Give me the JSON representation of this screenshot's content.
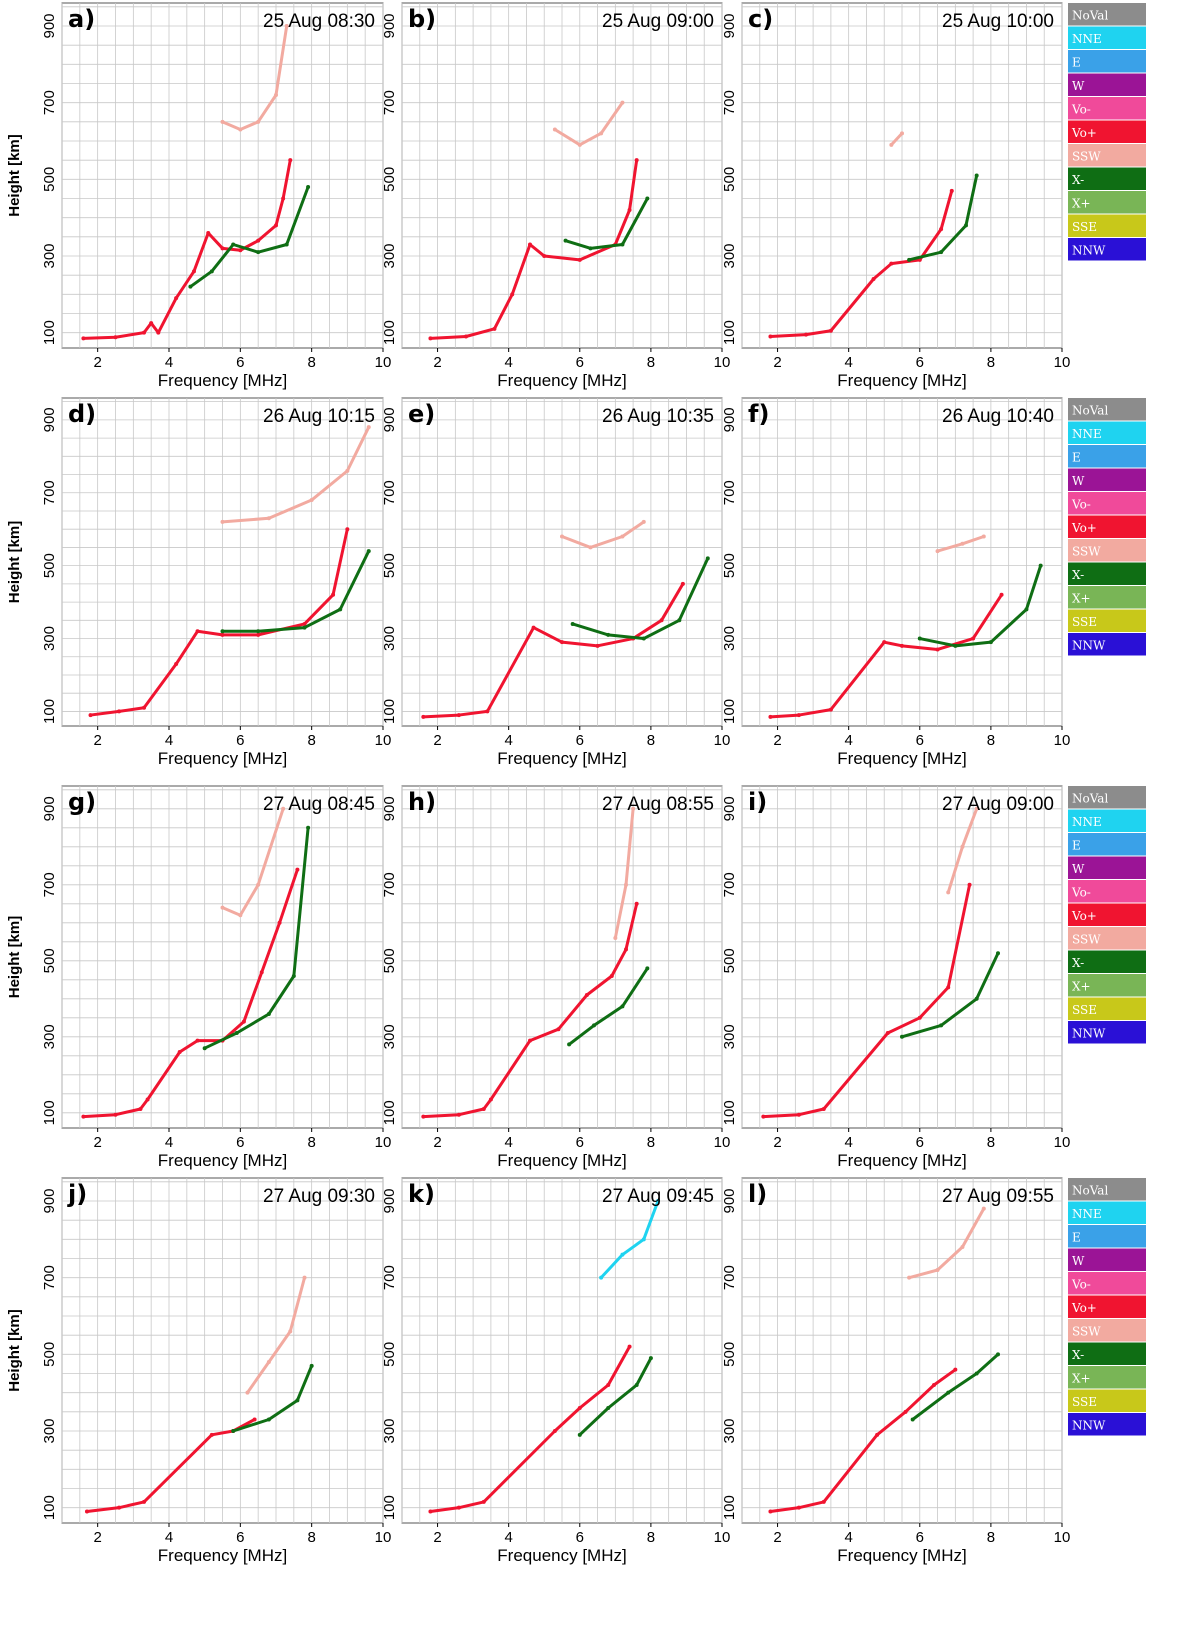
{
  "legend": {
    "entries": [
      {
        "label": "NoVal",
        "color": "#8c8c8c"
      },
      {
        "label": "NNE",
        "color": "#1fd3f0"
      },
      {
        "label": "E",
        "color": "#3aa1e8"
      },
      {
        "label": "W",
        "color": "#9b1496"
      },
      {
        "label": "Vo-",
        "color": "#f04a9a"
      },
      {
        "label": "Vo+",
        "color": "#f01430"
      },
      {
        "label": "SSW",
        "color": "#f2aaa0"
      },
      {
        "label": "X-",
        "color": "#0f6e14"
      },
      {
        "label": "X+",
        "color": "#79b556"
      },
      {
        "label": "SSE",
        "color": "#c8c81a"
      },
      {
        "label": "NNW",
        "color": "#2a10d6"
      }
    ]
  },
  "chart_data": [
    {
      "type": "scatter",
      "panel": "a)",
      "title": "25 Aug 08:30",
      "xlabel": "Frequency [MHz]",
      "ylabel": "Height [km]",
      "xlim": [
        1,
        10
      ],
      "ylim": [
        60,
        960
      ],
      "xticks": [
        "2",
        "4",
        "6",
        "8",
        "10"
      ],
      "yticks": [
        "100",
        "300",
        "500",
        "700",
        "900"
      ],
      "series": [
        {
          "name": "Vo+",
          "x": [
            1.6,
            2.5,
            3.3,
            3.5,
            3.7,
            4.2,
            4.7,
            5.1,
            5.5,
            6.0,
            6.5,
            7.0,
            7.2,
            7.4
          ],
          "y": [
            85,
            88,
            100,
            125,
            100,
            190,
            260,
            360,
            320,
            315,
            340,
            380,
            450,
            550
          ]
        },
        {
          "name": "X-",
          "x": [
            4.6,
            5.2,
            5.8,
            6.5,
            7.3,
            7.9
          ],
          "y": [
            220,
            260,
            330,
            310,
            330,
            480
          ]
        },
        {
          "name": "SSW",
          "x": [
            5.5,
            6.0,
            6.5,
            7.0,
            7.3
          ],
          "y": [
            650,
            630,
            650,
            720,
            900
          ]
        }
      ]
    },
    {
      "type": "scatter",
      "panel": "b)",
      "title": "25 Aug 09:00",
      "xlabel": "Frequency [MHz]",
      "ylabel": "Height [km]",
      "xlim": [
        1,
        10
      ],
      "ylim": [
        60,
        960
      ],
      "xticks": [
        "2",
        "4",
        "6",
        "8",
        "10"
      ],
      "yticks": [
        "100",
        "300",
        "500",
        "700",
        "900"
      ],
      "series": [
        {
          "name": "Vo+",
          "x": [
            1.8,
            2.8,
            3.6,
            4.1,
            4.6,
            5.0,
            6.0,
            7.0,
            7.4,
            7.6
          ],
          "y": [
            85,
            90,
            110,
            200,
            330,
            300,
            290,
            330,
            420,
            550
          ]
        },
        {
          "name": "X-",
          "x": [
            5.6,
            6.3,
            7.2,
            7.9
          ],
          "y": [
            340,
            320,
            330,
            450
          ]
        },
        {
          "name": "SSW",
          "x": [
            5.3,
            6.0,
            6.6,
            7.2
          ],
          "y": [
            630,
            590,
            620,
            700
          ]
        }
      ]
    },
    {
      "type": "scatter",
      "panel": "c)",
      "title": "25 Aug 10:00",
      "xlabel": "Frequency [MHz]",
      "ylabel": "Height [km]",
      "xlim": [
        1,
        10
      ],
      "ylim": [
        60,
        960
      ],
      "xticks": [
        "2",
        "4",
        "6",
        "8",
        "10"
      ],
      "yticks": [
        "100",
        "300",
        "500",
        "700",
        "900"
      ],
      "series": [
        {
          "name": "Vo+",
          "x": [
            1.8,
            2.8,
            3.5,
            4.7,
            5.2,
            6.0,
            6.6,
            6.9
          ],
          "y": [
            90,
            95,
            105,
            240,
            280,
            290,
            370,
            470
          ]
        },
        {
          "name": "X-",
          "x": [
            5.7,
            6.6,
            7.3,
            7.6
          ],
          "y": [
            290,
            310,
            380,
            510
          ]
        },
        {
          "name": "SSW",
          "x": [
            5.2,
            5.5
          ],
          "y": [
            590,
            620
          ]
        }
      ]
    },
    {
      "type": "scatter",
      "panel": "d)",
      "title": "26 Aug 10:15",
      "xlabel": "Frequency [MHz]",
      "ylabel": "Height [km]",
      "xlim": [
        1,
        10
      ],
      "ylim": [
        60,
        960
      ],
      "xticks": [
        "2",
        "4",
        "6",
        "8",
        "10"
      ],
      "yticks": [
        "100",
        "300",
        "500",
        "700",
        "900"
      ],
      "series": [
        {
          "name": "Vo+",
          "x": [
            1.8,
            2.6,
            3.3,
            4.2,
            4.8,
            5.5,
            6.5,
            7.8,
            8.6,
            9.0
          ],
          "y": [
            90,
            100,
            110,
            230,
            320,
            310,
            310,
            340,
            420,
            600
          ]
        },
        {
          "name": "X-",
          "x": [
            5.5,
            6.5,
            7.8,
            8.8,
            9.6
          ],
          "y": [
            320,
            320,
            330,
            380,
            540
          ]
        },
        {
          "name": "SSW",
          "x": [
            5.5,
            6.8,
            8.0,
            9.0,
            9.6
          ],
          "y": [
            620,
            630,
            680,
            760,
            880
          ]
        }
      ]
    },
    {
      "type": "scatter",
      "panel": "e)",
      "title": "26 Aug 10:35",
      "xlabel": "Frequency [MHz]",
      "ylabel": "Height [km]",
      "xlim": [
        1,
        10
      ],
      "ylim": [
        60,
        960
      ],
      "xticks": [
        "2",
        "4",
        "6",
        "8",
        "10"
      ],
      "yticks": [
        "100",
        "300",
        "500",
        "700",
        "900"
      ],
      "series": [
        {
          "name": "Vo+",
          "x": [
            1.6,
            2.6,
            3.4,
            4.7,
            5.5,
            6.5,
            7.5,
            8.3,
            8.9
          ],
          "y": [
            85,
            90,
            100,
            330,
            290,
            280,
            300,
            350,
            450
          ]
        },
        {
          "name": "X-",
          "x": [
            5.8,
            6.8,
            7.8,
            8.8,
            9.6
          ],
          "y": [
            340,
            310,
            300,
            350,
            520
          ]
        },
        {
          "name": "SSW",
          "x": [
            5.5,
            6.3,
            7.2,
            7.8
          ],
          "y": [
            580,
            550,
            580,
            620
          ]
        }
      ]
    },
    {
      "type": "scatter",
      "panel": "f)",
      "title": "26 Aug 10:40",
      "xlabel": "Frequency [MHz]",
      "ylabel": "Height [km]",
      "xlim": [
        1,
        10
      ],
      "ylim": [
        60,
        960
      ],
      "xticks": [
        "2",
        "4",
        "6",
        "8",
        "10"
      ],
      "yticks": [
        "100",
        "300",
        "500",
        "700",
        "900"
      ],
      "series": [
        {
          "name": "Vo+",
          "x": [
            1.8,
            2.6,
            3.5,
            5.0,
            5.5,
            6.5,
            7.5,
            8.3
          ],
          "y": [
            85,
            90,
            105,
            290,
            280,
            270,
            300,
            420
          ]
        },
        {
          "name": "X-",
          "x": [
            6.0,
            7.0,
            8.0,
            9.0,
            9.4
          ],
          "y": [
            300,
            280,
            290,
            380,
            500
          ]
        },
        {
          "name": "SSW",
          "x": [
            6.5,
            7.2,
            7.8
          ],
          "y": [
            540,
            560,
            580
          ]
        }
      ]
    },
    {
      "type": "scatter",
      "panel": "g)",
      "title": "27 Aug 08:45",
      "xlabel": "Frequency [MHz]",
      "ylabel": "Height [km]",
      "xlim": [
        1,
        10
      ],
      "ylim": [
        60,
        960
      ],
      "xticks": [
        "2",
        "4",
        "6",
        "8",
        "10"
      ],
      "yticks": [
        "100",
        "300",
        "500",
        "700",
        "900"
      ],
      "series": [
        {
          "name": "Vo+",
          "x": [
            1.6,
            2.5,
            3.2,
            3.4,
            4.3,
            4.8,
            5.5,
            6.1,
            6.6,
            7.1,
            7.6
          ],
          "y": [
            90,
            95,
            110,
            135,
            260,
            290,
            290,
            340,
            470,
            600,
            740
          ]
        },
        {
          "name": "X-",
          "x": [
            5.0,
            5.9,
            6.8,
            7.5,
            7.9
          ],
          "y": [
            270,
            310,
            360,
            460,
            850
          ]
        },
        {
          "name": "SSW",
          "x": [
            5.5,
            6.0,
            6.5,
            7.2
          ],
          "y": [
            640,
            620,
            700,
            900
          ]
        }
      ]
    },
    {
      "type": "scatter",
      "panel": "h)",
      "title": "27 Aug 08:55",
      "xlabel": "Frequency [MHz]",
      "ylabel": "Height [km]",
      "xlim": [
        1,
        10
      ],
      "ylim": [
        60,
        960
      ],
      "xticks": [
        "2",
        "4",
        "6",
        "8",
        "10"
      ],
      "yticks": [
        "100",
        "300",
        "500",
        "700",
        "900"
      ],
      "series": [
        {
          "name": "Vo+",
          "x": [
            1.6,
            2.6,
            3.3,
            3.5,
            4.6,
            5.4,
            6.2,
            6.9,
            7.3,
            7.6
          ],
          "y": [
            90,
            95,
            110,
            135,
            290,
            320,
            410,
            460,
            530,
            650
          ]
        },
        {
          "name": "X-",
          "x": [
            5.7,
            6.4,
            7.2,
            7.9
          ],
          "y": [
            280,
            330,
            380,
            480
          ]
        },
        {
          "name": "SSW",
          "x": [
            7.0,
            7.3,
            7.5
          ],
          "y": [
            560,
            700,
            900
          ]
        }
      ]
    },
    {
      "type": "scatter",
      "panel": "i)",
      "title": "27 Aug 09:00",
      "xlabel": "Frequency [MHz]",
      "ylabel": "Height [km]",
      "xlim": [
        1,
        10
      ],
      "ylim": [
        60,
        960
      ],
      "xticks": [
        "2",
        "4",
        "6",
        "8",
        "10"
      ],
      "yticks": [
        "100",
        "300",
        "500",
        "700",
        "900"
      ],
      "series": [
        {
          "name": "Vo+",
          "x": [
            1.6,
            2.6,
            3.3,
            5.1,
            6.0,
            6.8,
            7.4
          ],
          "y": [
            90,
            95,
            110,
            310,
            350,
            430,
            700
          ]
        },
        {
          "name": "X-",
          "x": [
            5.5,
            6.6,
            7.6,
            8.2
          ],
          "y": [
            300,
            330,
            400,
            520
          ]
        },
        {
          "name": "SSW",
          "x": [
            6.8,
            7.2,
            7.6
          ],
          "y": [
            680,
            800,
            900
          ]
        }
      ]
    },
    {
      "type": "scatter",
      "panel": "j)",
      "title": "27 Aug 09:30",
      "xlabel": "Frequency [MHz]",
      "ylabel": "Height [km]",
      "xlim": [
        1,
        10
      ],
      "ylim": [
        60,
        960
      ],
      "xticks": [
        "2",
        "4",
        "6",
        "8",
        "10"
      ],
      "yticks": [
        "100",
        "300",
        "500",
        "700",
        "900"
      ],
      "series": [
        {
          "name": "Vo+",
          "x": [
            1.7,
            2.6,
            3.3,
            5.2,
            5.8,
            6.4
          ],
          "y": [
            90,
            100,
            115,
            290,
            300,
            330
          ]
        },
        {
          "name": "X-",
          "x": [
            5.8,
            6.8,
            7.6,
            8.0
          ],
          "y": [
            300,
            330,
            380,
            470
          ]
        },
        {
          "name": "SSW",
          "x": [
            6.2,
            6.8,
            7.4,
            7.8
          ],
          "y": [
            400,
            480,
            560,
            700
          ]
        }
      ]
    },
    {
      "type": "scatter",
      "panel": "k)",
      "title": "27 Aug 09:45",
      "xlabel": "Frequency [MHz]",
      "ylabel": "Height [km]",
      "xlim": [
        1,
        10
      ],
      "ylim": [
        60,
        960
      ],
      "xticks": [
        "2",
        "4",
        "6",
        "8",
        "10"
      ],
      "yticks": [
        "100",
        "300",
        "500",
        "700",
        "900"
      ],
      "series": [
        {
          "name": "Vo+",
          "x": [
            1.8,
            2.6,
            3.3,
            5.3,
            6.0,
            6.8,
            7.4
          ],
          "y": [
            90,
            100,
            115,
            300,
            360,
            420,
            520
          ]
        },
        {
          "name": "X-",
          "x": [
            6.0,
            6.8,
            7.6,
            8.0
          ],
          "y": [
            290,
            360,
            420,
            490
          ]
        },
        {
          "name": "NNE",
          "x": [
            6.6,
            7.2,
            7.8,
            8.2
          ],
          "y": [
            700,
            760,
            800,
            900
          ]
        }
      ]
    },
    {
      "type": "scatter",
      "panel": "l)",
      "title": "27 Aug 09:55",
      "xlabel": "Frequency [MHz]",
      "ylabel": "Height [km]",
      "xlim": [
        1,
        10
      ],
      "ylim": [
        60,
        960
      ],
      "xticks": [
        "2",
        "4",
        "6",
        "8",
        "10"
      ],
      "yticks": [
        "100",
        "300",
        "500",
        "700",
        "900"
      ],
      "series": [
        {
          "name": "Vo+",
          "x": [
            1.8,
            2.6,
            3.3,
            4.8,
            5.6,
            6.4,
            7.0
          ],
          "y": [
            90,
            100,
            115,
            290,
            350,
            420,
            460
          ]
        },
        {
          "name": "X-",
          "x": [
            5.8,
            6.8,
            7.6,
            8.2
          ],
          "y": [
            330,
            400,
            450,
            500
          ]
        },
        {
          "name": "SSW",
          "x": [
            5.7,
            6.5,
            7.2,
            7.8
          ],
          "y": [
            700,
            720,
            780,
            880
          ]
        }
      ]
    }
  ]
}
